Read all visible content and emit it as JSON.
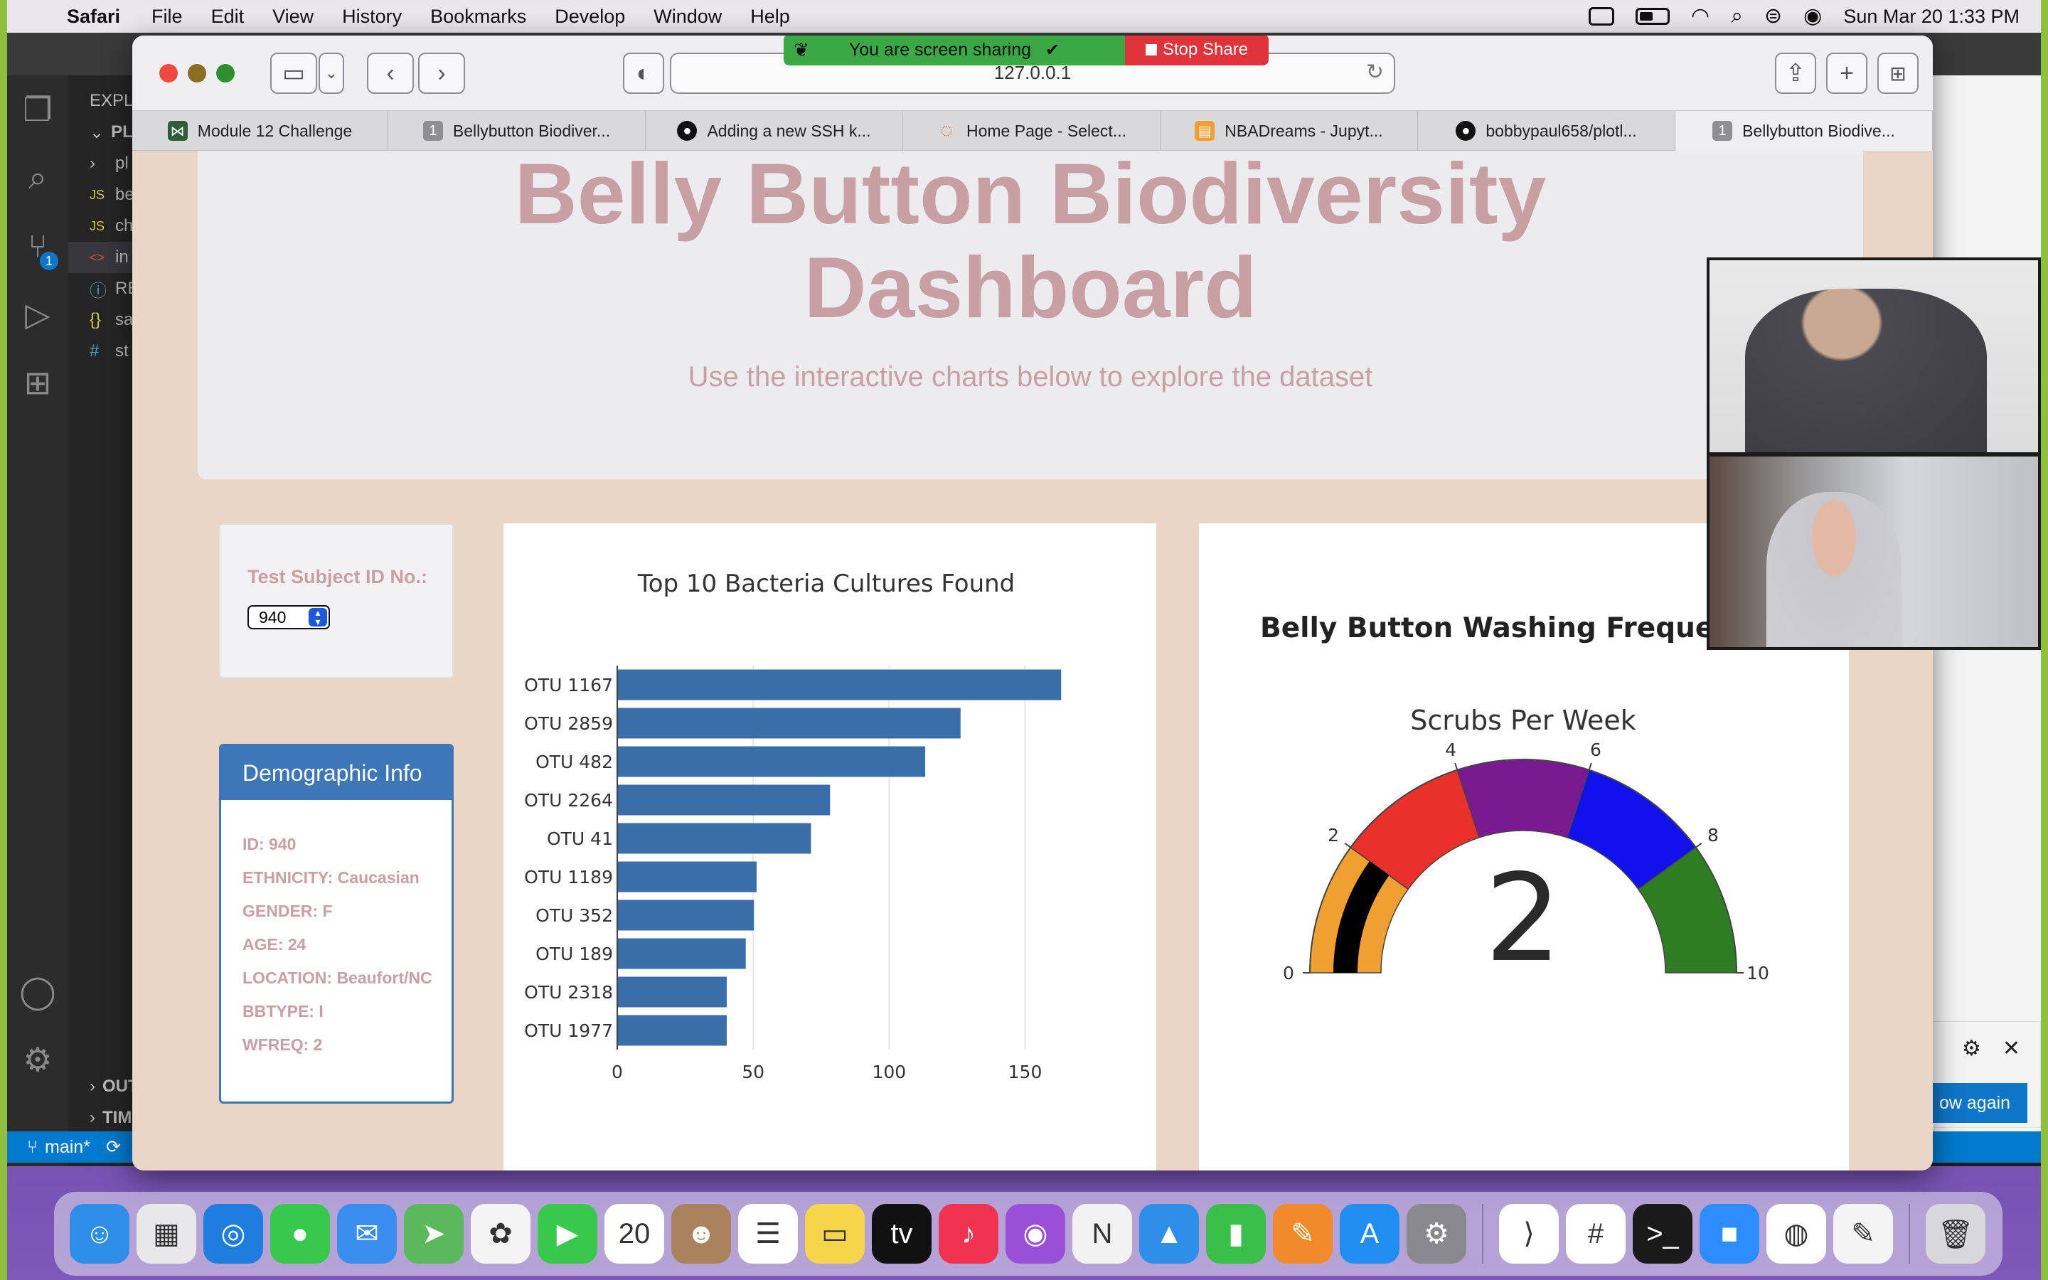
{
  "menubar": {
    "app": "Safari",
    "items": [
      "File",
      "Edit",
      "View",
      "History",
      "Bookmarks",
      "Develop",
      "Window",
      "Help"
    ],
    "clock": "Sun Mar 20  1:33 PM"
  },
  "vscode": {
    "explorer_label": "EXPL",
    "folder": "PLOT",
    "files": [
      "pl",
      "be",
      "ch",
      "in",
      "RE",
      "sa",
      "st"
    ],
    "file_icons": [
      "›",
      "JS",
      "JS",
      "<>",
      "ⓘ",
      "{}",
      "#"
    ],
    "outline": "OUT",
    "timeline": "TIME",
    "branch": "main*",
    "source_control_badge": "1",
    "notification_button": "ow again"
  },
  "safari": {
    "url": "127.0.0.1",
    "screen_share_text": "You are screen sharing",
    "stop_share_label": "Stop Share",
    "tabs": [
      {
        "label": "Module 12 Challenge",
        "icon_color": "#2f5d3a",
        "icon_text": ""
      },
      {
        "label": "Bellybutton Biodiver...",
        "icon_color": "#8e8e93",
        "icon_text": "1"
      },
      {
        "label": "Adding a new SSH k...",
        "icon_color": "#111111",
        "icon_text": ""
      },
      {
        "label": "Home Page - Select...",
        "icon_color": "#f07a2b",
        "icon_text": ""
      },
      {
        "label": "NBADreams - Jupyt...",
        "icon_color": "#f0a030",
        "icon_text": ""
      },
      {
        "label": "bobbypaul658/plotl...",
        "icon_color": "#111111",
        "icon_text": ""
      },
      {
        "label": "Bellybutton Biodive...",
        "icon_color": "#8e8e93",
        "icon_text": "1"
      }
    ]
  },
  "dashboard": {
    "title_line1": "Belly Button Biodiversity",
    "title_line2": "Dashboard",
    "subtitle": "Use the interactive charts below to explore the dataset",
    "select_label": "Test Subject ID No.:",
    "selected_id": "940",
    "demo_title": "Demographic Info",
    "demographics": [
      "ID: 940",
      "ETHNICITY: Caucasian",
      "GENDER: F",
      "AGE: 24",
      "LOCATION: Beaufort/NC",
      "BBTYPE: I",
      "WFREQ: 2"
    ]
  },
  "chart_data": [
    {
      "type": "bar",
      "orientation": "horizontal",
      "title": "Top 10 Bacteria Cultures Found",
      "categories": [
        "OTU 1167",
        "OTU 2859",
        "OTU 482",
        "OTU 2264",
        "OTU 41",
        "OTU 1189",
        "OTU 352",
        "OTU 189",
        "OTU 2318",
        "OTU 1977"
      ],
      "values": [
        163,
        126,
        113,
        78,
        71,
        51,
        50,
        47,
        40,
        40
      ],
      "xlim": [
        0,
        170
      ],
      "xticks": [
        0,
        50,
        100,
        150
      ],
      "bar_color": "#3a6ea8",
      "grid": true
    },
    {
      "type": "gauge",
      "title": "Belly Button Washing Frequency",
      "subtitle": "Scrubs Per Week",
      "value": 2,
      "range": [
        0,
        10
      ],
      "ticks": [
        0,
        2,
        4,
        6,
        8,
        10
      ],
      "steps": [
        {
          "range": [
            0,
            2
          ],
          "color": "#f0a030"
        },
        {
          "range": [
            2,
            4
          ],
          "color": "#e8312a"
        },
        {
          "range": [
            4,
            6
          ],
          "color": "#7a1a90"
        },
        {
          "range": [
            6,
            8
          ],
          "color": "#1111ee"
        },
        {
          "range": [
            8,
            10
          ],
          "color": "#2e7d22"
        }
      ],
      "bar_color": "#000000"
    }
  ],
  "dock_apps": [
    {
      "name": "finder",
      "color": "#2f8fe8",
      "glyph": "☺"
    },
    {
      "name": "launchpad",
      "color": "#e8e8ea",
      "glyph": "▦"
    },
    {
      "name": "safari",
      "color": "#1f7de0",
      "glyph": "◎"
    },
    {
      "name": "messages",
      "color": "#36c94b",
      "glyph": "●"
    },
    {
      "name": "mail",
      "color": "#3a8ef0",
      "glyph": "✉"
    },
    {
      "name": "maps",
      "color": "#5cb85c",
      "glyph": "➤"
    },
    {
      "name": "photos",
      "color": "#f4f4f4",
      "glyph": "✿"
    },
    {
      "name": "facetime",
      "color": "#36c94b",
      "glyph": "▶"
    },
    {
      "name": "calendar",
      "color": "#ffffff",
      "glyph": "20"
    },
    {
      "name": "contacts",
      "color": "#a8835e",
      "glyph": "☻"
    },
    {
      "name": "reminders",
      "color": "#ffffff",
      "glyph": "☰"
    },
    {
      "name": "notes",
      "color": "#f7d54a",
      "glyph": "▭"
    },
    {
      "name": "tv",
      "color": "#111111",
      "glyph": "tv"
    },
    {
      "name": "music",
      "color": "#f0344f",
      "glyph": "♪"
    },
    {
      "name": "podcasts",
      "color": "#9a4fd8",
      "glyph": "◉"
    },
    {
      "name": "news",
      "color": "#f2f2f2",
      "glyph": "N"
    },
    {
      "name": "keynote",
      "color": "#2f8fe8",
      "glyph": "▲"
    },
    {
      "name": "numbers",
      "color": "#3bbf4b",
      "glyph": "▮"
    },
    {
      "name": "pages",
      "color": "#f08a2a",
      "glyph": "✎"
    },
    {
      "name": "app-store",
      "color": "#1f8ef0",
      "glyph": "A"
    },
    {
      "name": "system-preferences",
      "color": "#8a8a8e",
      "glyph": "⚙"
    },
    {
      "name": "vscode",
      "color": "#ffffff",
      "glyph": "⟩"
    },
    {
      "name": "slack",
      "color": "#ffffff",
      "glyph": "#"
    },
    {
      "name": "terminal",
      "color": "#1a1a1a",
      "glyph": ">_"
    },
    {
      "name": "zoom",
      "color": "#2d8cff",
      "glyph": "■"
    },
    {
      "name": "chrome",
      "color": "#ffffff",
      "glyph": "◍"
    },
    {
      "name": "textedit",
      "color": "#f4f4f4",
      "glyph": "✎"
    },
    {
      "name": "trash",
      "color": "#d8d8dc",
      "glyph": "🗑"
    }
  ]
}
